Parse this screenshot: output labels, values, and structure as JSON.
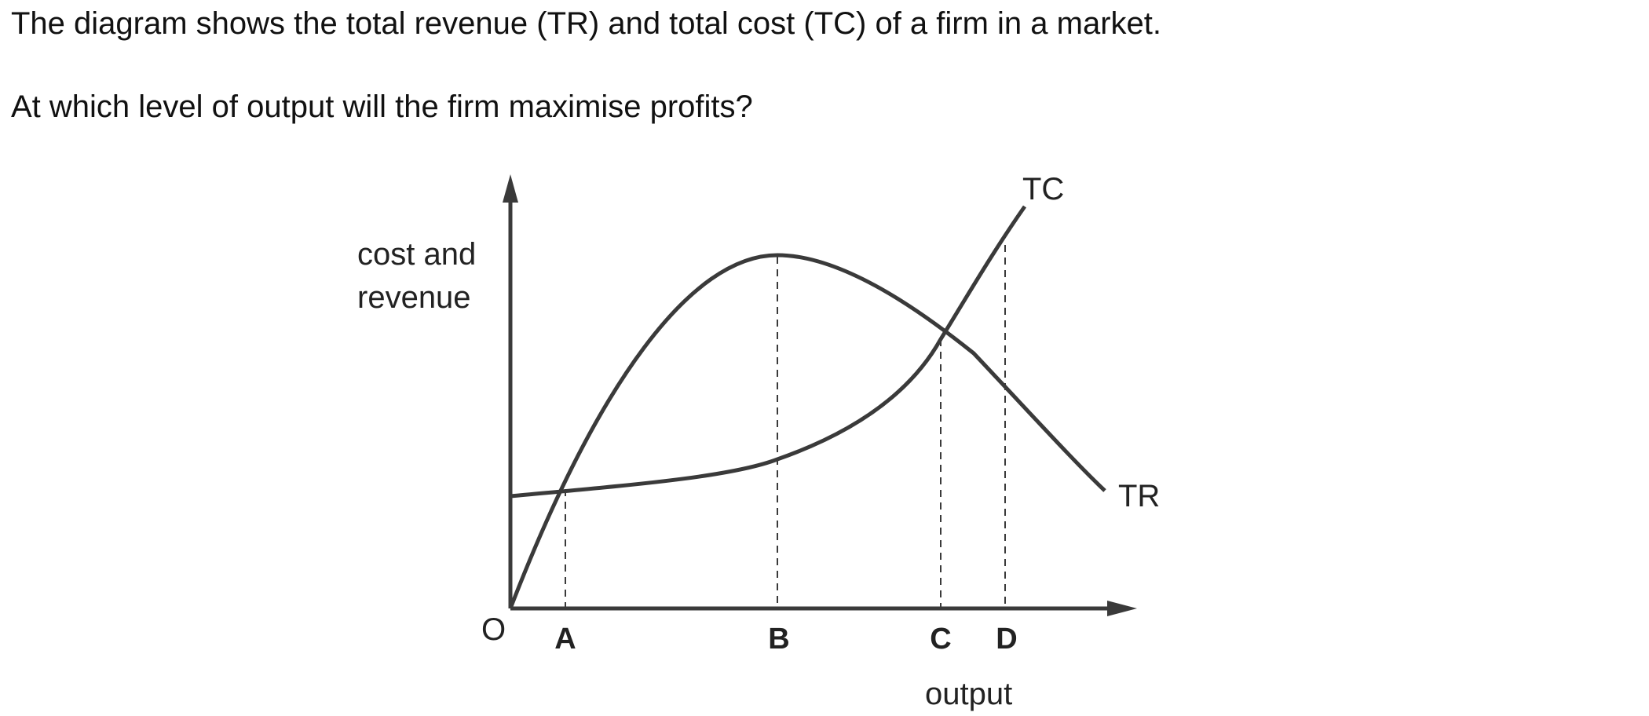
{
  "question": {
    "line1": "The diagram shows the total revenue (TR) and total cost (TC) of a firm in a market.",
    "line2": "At which level of output will the firm maximise profits?"
  },
  "diagram": {
    "y_axis_label_line1": "cost and",
    "y_axis_label_line2": "revenue",
    "x_axis_label": "output",
    "origin_label": "O",
    "curves": {
      "tc_label": "TC",
      "tr_label": "TR"
    },
    "output_points": [
      "A",
      "B",
      "C",
      "D"
    ],
    "colors": {
      "line": "#3a3a3a",
      "text": "#222222"
    }
  }
}
